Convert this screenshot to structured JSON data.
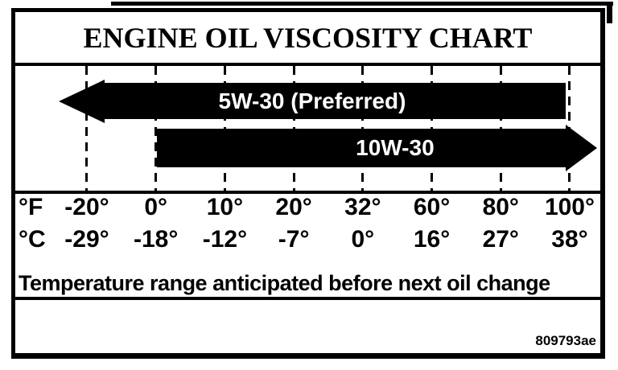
{
  "chart_data": {
    "type": "bar",
    "chart_kind": "horizontal-temperature-range-arrows",
    "title": "ENGINE OIL VISCOSITY CHART",
    "temperature_scales": [
      {
        "unit": "°F",
        "ticks": [
          "-20°",
          "0°",
          "10°",
          "20°",
          "32°",
          "60°",
          "80°",
          "100°"
        ]
      },
      {
        "unit": "°C",
        "ticks": [
          "-29°",
          "-18°",
          "-12°",
          "-7°",
          "0°",
          "16°",
          "27°",
          "38°"
        ]
      }
    ],
    "series": [
      {
        "label": "5W-30 (Preferred)",
        "arrow_direction": "left",
        "range_f": {
          "start": -20,
          "end": 100,
          "open_ended": "below-start"
        }
      },
      {
        "label": "10W-30",
        "arrow_direction": "right",
        "range_f": {
          "start": 0,
          "end": 100,
          "open_ended": "above-end"
        }
      }
    ],
    "annotation": "Temperature range anticipated before next oil change",
    "figure_code": "809793ae",
    "colors": {
      "bar": "#000000",
      "bar_text": "#ffffff",
      "line": "#000000",
      "background": "#ffffff"
    },
    "layout_hints": {
      "grid": "dashed-vertical-lines-at-each-tick",
      "legend": "none",
      "axis_rows": 2
    }
  }
}
